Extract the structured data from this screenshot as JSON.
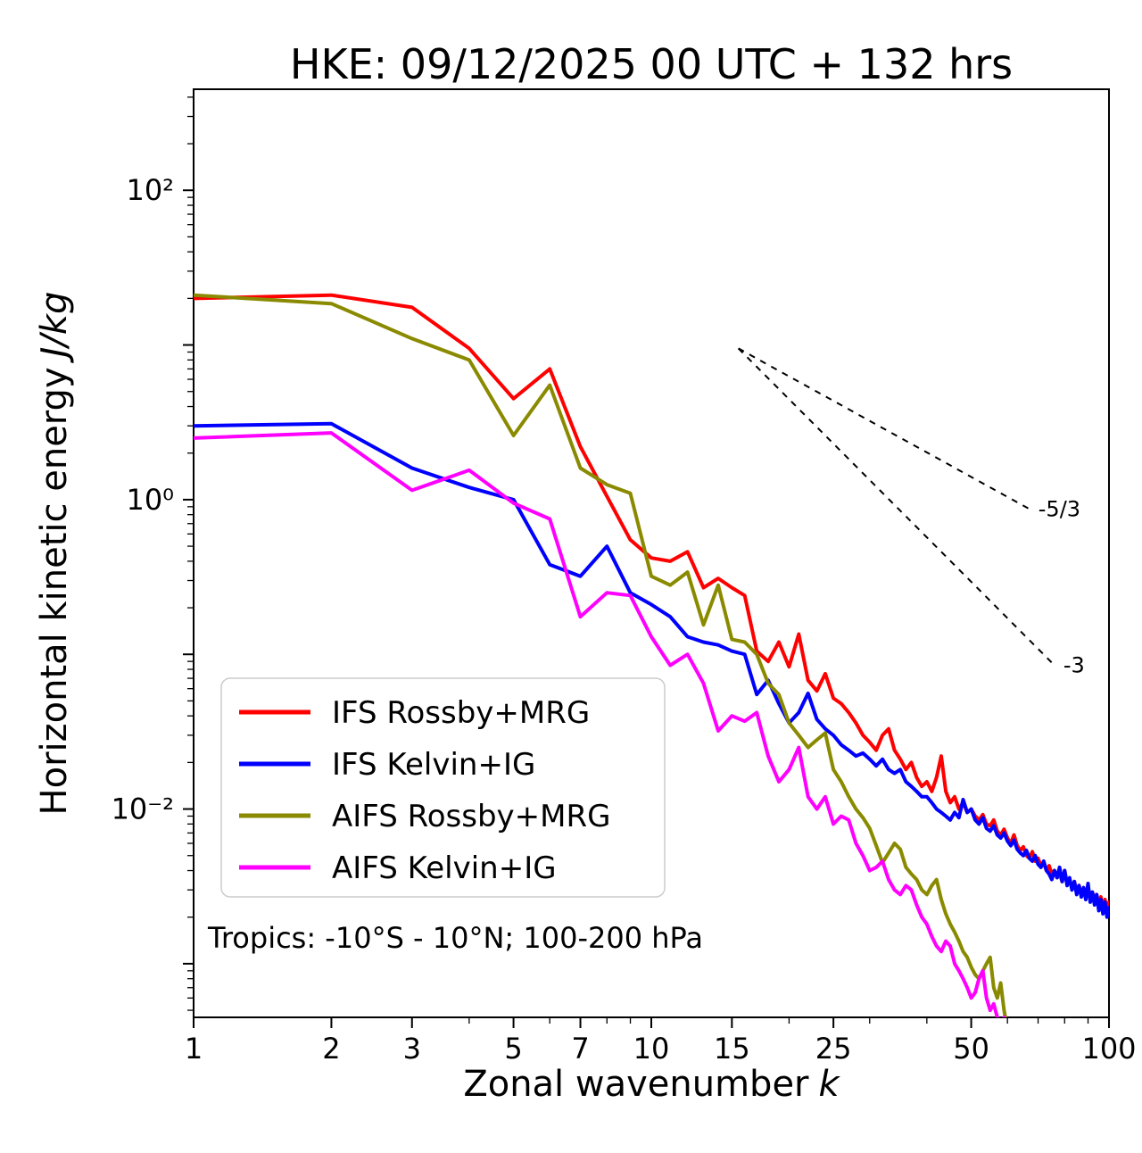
{
  "title": "HKE: 09/12/2025 00 UTC + 132 hrs",
  "axes": {
    "xlabel_text": "Zonal wavenumber",
    "xlabel_var": "k",
    "ylabel_text": "Horizontal kinetic energy",
    "ylabel_var": "J/kg"
  },
  "chart_data": {
    "type": "line",
    "x_scale": "log",
    "y_scale": "log",
    "xlim": [
      1,
      100
    ],
    "ylim": [
      0.00045,
      450
    ],
    "grid": false,
    "legend_position": "lower-left",
    "annotation": "Tropics: -10°S - 10°N; 100-200 hPa",
    "x_ticks": [
      {
        "v": 1,
        "label": "1"
      },
      {
        "v": 2,
        "label": "2"
      },
      {
        "v": 3,
        "label": "3"
      },
      {
        "v": 5,
        "label": "5"
      },
      {
        "v": 7,
        "label": "7"
      },
      {
        "v": 10,
        "label": "10"
      },
      {
        "v": 15,
        "label": "15"
      },
      {
        "v": 25,
        "label": "25"
      },
      {
        "v": 50,
        "label": "50"
      },
      {
        "v": 100,
        "label": "100"
      }
    ],
    "y_ticks": [
      {
        "v": 100,
        "label": "10²"
      },
      {
        "v": 10,
        "label": ""
      },
      {
        "v": 1,
        "label": "10⁰"
      },
      {
        "v": 0.1,
        "label": ""
      },
      {
        "v": 0.01,
        "label": "10⁻²"
      },
      {
        "v": 0.001,
        "label": ""
      }
    ],
    "ref_lines": [
      {
        "label": "-5/3",
        "x1": 15.5,
        "y1": 9.5,
        "x2": 67,
        "y2": 0.87
      },
      {
        "label": "-3",
        "x1": 15.5,
        "y1": 9.5,
        "x2": 76,
        "y2": 0.085
      }
    ],
    "series": [
      {
        "name": "IFS Rossby+MRG",
        "color": "#ff0000",
        "x_start": 1,
        "x_step": 1,
        "y": [
          20,
          21,
          17.5,
          9.5,
          4.5,
          7.0,
          2.2,
          1.05,
          0.55,
          0.42,
          0.4,
          0.46,
          0.27,
          0.31,
          0.27,
          0.24,
          0.105,
          0.09,
          0.12,
          0.083,
          0.135,
          0.068,
          0.058,
          0.075,
          0.052,
          0.048,
          0.042,
          0.036,
          0.03,
          0.027,
          0.024,
          0.03,
          0.033,
          0.024,
          0.021,
          0.018,
          0.02,
          0.016,
          0.014,
          0.015,
          0.013,
          0.016,
          0.022,
          0.013,
          0.011,
          0.012,
          0.01,
          0.011,
          0.0095,
          0.01,
          0.009,
          0.0085,
          0.0092,
          0.008,
          0.0078,
          0.0085,
          0.0072,
          0.0068,
          0.0074,
          0.0065,
          0.006,
          0.0068,
          0.0058,
          0.0054,
          0.0057,
          0.005,
          0.0048,
          0.0053,
          0.0046,
          0.0048,
          0.0043,
          0.0045,
          0.004,
          0.0043,
          0.0038,
          0.004,
          0.0036,
          0.0038,
          0.0034,
          0.004,
          0.0033,
          0.0035,
          0.0031,
          0.0034,
          0.0029,
          0.0032,
          0.0028,
          0.0031,
          0.0027,
          0.003,
          0.0026,
          0.0029,
          0.0025,
          0.0028,
          0.0024,
          0.0027,
          0.0023,
          0.0026,
          0.0022,
          0.0025
        ]
      },
      {
        "name": "IFS Kelvin+IG",
        "color": "#0000ff",
        "x_start": 1,
        "x_step": 1,
        "y": [
          3.0,
          3.1,
          1.6,
          1.2,
          1.0,
          0.38,
          0.32,
          0.5,
          0.25,
          0.21,
          0.175,
          0.13,
          0.12,
          0.115,
          0.105,
          0.1,
          0.055,
          0.068,
          0.048,
          0.036,
          0.042,
          0.056,
          0.038,
          0.033,
          0.03,
          0.026,
          0.024,
          0.022,
          0.023,
          0.021,
          0.019,
          0.021,
          0.018,
          0.017,
          0.018,
          0.015,
          0.014,
          0.013,
          0.012,
          0.012,
          0.011,
          0.01,
          0.0095,
          0.009,
          0.0085,
          0.0095,
          0.0088,
          0.0115,
          0.0095,
          0.01,
          0.0085,
          0.008,
          0.0088,
          0.0075,
          0.0072,
          0.0078,
          0.0068,
          0.0065,
          0.007,
          0.0062,
          0.0058,
          0.0063,
          0.0055,
          0.0052,
          0.005,
          0.0054,
          0.0048,
          0.0046,
          0.005,
          0.0044,
          0.0042,
          0.0046,
          0.004,
          0.0038,
          0.0035,
          0.004,
          0.0036,
          0.0042,
          0.0034,
          0.004,
          0.0032,
          0.0036,
          0.003,
          0.0034,
          0.0028,
          0.0032,
          0.0027,
          0.0031,
          0.0026,
          0.0033,
          0.0025,
          0.0029,
          0.0024,
          0.0028,
          0.0022,
          0.0026,
          0.0021,
          0.0025,
          0.002,
          0.0023
        ]
      },
      {
        "name": "AIFS Rossby+MRG",
        "color": "#8a8a00",
        "x_start": 1,
        "x_step": 1,
        "y": [
          21,
          18.5,
          11,
          8,
          2.6,
          5.5,
          1.6,
          1.25,
          1.1,
          0.32,
          0.28,
          0.34,
          0.155,
          0.28,
          0.125,
          0.12,
          0.1,
          0.065,
          0.055,
          0.036,
          0.03,
          0.025,
          0.028,
          0.031,
          0.018,
          0.015,
          0.012,
          0.01,
          0.0088,
          0.0075,
          0.0058,
          0.0045,
          0.0052,
          0.006,
          0.0055,
          0.0042,
          0.0038,
          0.0035,
          0.003,
          0.0028,
          0.0032,
          0.0035,
          0.0026,
          0.0021,
          0.0018,
          0.0016,
          0.0014,
          0.0012,
          0.0011,
          0.00095,
          0.00085,
          0.0008,
          0.0009,
          0.001,
          0.0011,
          0.0007,
          0.0006,
          0.00075,
          0.0005,
          0.00038
        ]
      },
      {
        "name": "AIFS Kelvin+IG",
        "color": "#ff00ff",
        "x_start": 1,
        "x_step": 1,
        "y": [
          2.5,
          2.7,
          1.15,
          1.55,
          0.95,
          0.75,
          0.175,
          0.25,
          0.24,
          0.13,
          0.085,
          0.1,
          0.065,
          0.032,
          0.04,
          0.037,
          0.042,
          0.022,
          0.015,
          0.018,
          0.025,
          0.012,
          0.01,
          0.012,
          0.008,
          0.009,
          0.0085,
          0.006,
          0.005,
          0.004,
          0.0042,
          0.0046,
          0.0035,
          0.003,
          0.0028,
          0.0032,
          0.003,
          0.0024,
          0.002,
          0.0018,
          0.0015,
          0.0013,
          0.0012,
          0.0014,
          0.0013,
          0.001,
          0.0009,
          0.0008,
          0.0007,
          0.0006,
          0.00065,
          0.0008,
          0.0009,
          0.0006,
          0.0005,
          0.00055,
          0.00045,
          0.0004,
          0.00045,
          0.00038
        ]
      }
    ]
  }
}
